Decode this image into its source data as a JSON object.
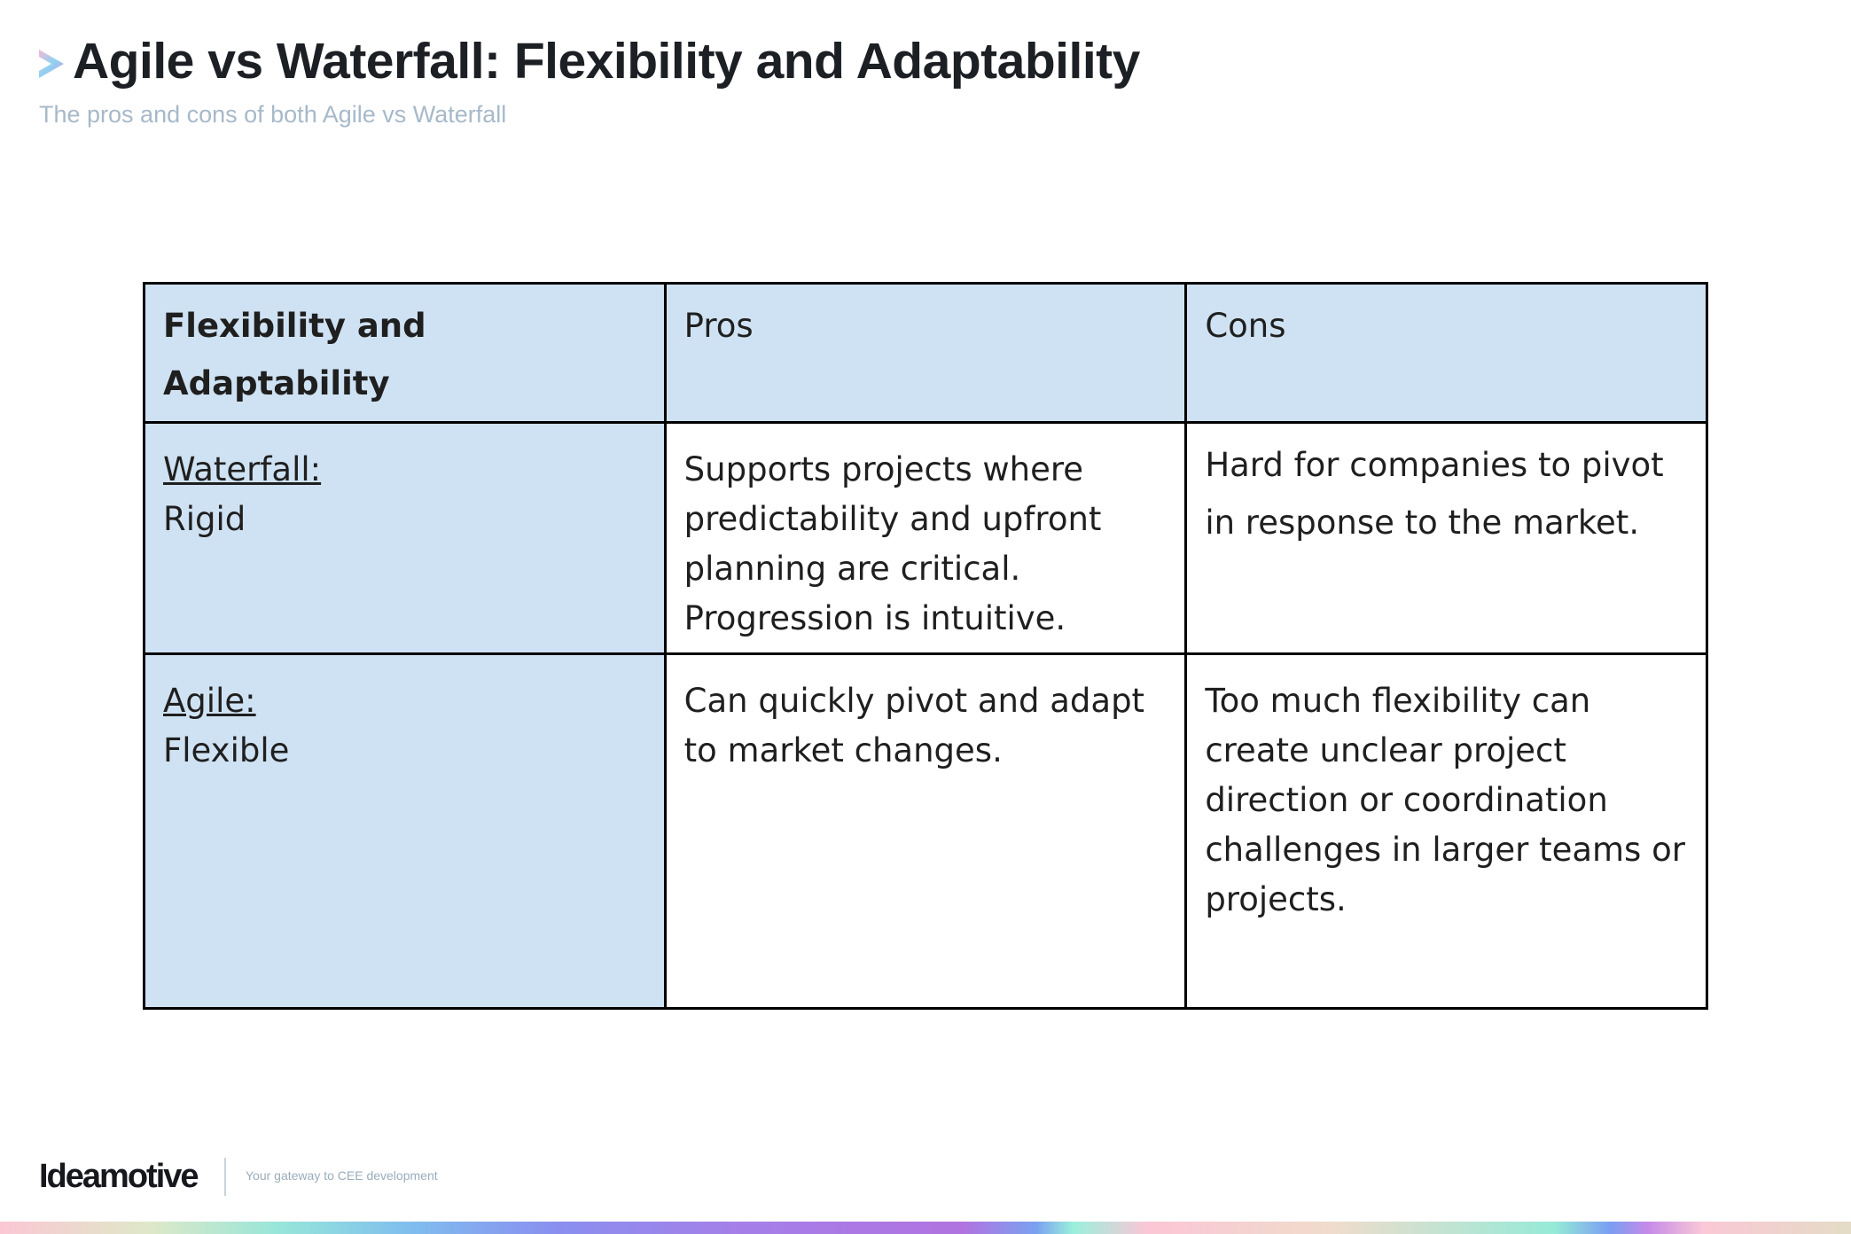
{
  "header": {
    "title": "Agile vs Waterfall: Flexibility and Adaptability",
    "subtitle": "The pros and cons of both Agile vs Waterfall",
    "logo_icon": "chevron-right-gradient-icon"
  },
  "table": {
    "headers": [
      "Flexibility and Adaptability",
      "Pros",
      "Cons"
    ],
    "rows": [
      {
        "method": "Waterfall:",
        "trait": "Rigid",
        "pros": "Supports projects where predictability and upfront planning are critical. Progression is intuitive.",
        "cons": "Hard for companies to pivot in response to the market."
      },
      {
        "method": "Agile:",
        "trait": "Flexible",
        "pros": "Can quickly pivot and adapt to market changes.",
        "cons": "Too much flexibility can create unclear project direction or coordination challenges in larger teams or projects."
      }
    ],
    "colors": {
      "header_bg": "#cfe2f3",
      "border": "#000000"
    }
  },
  "footer": {
    "brand": "Ideamotive",
    "tagline": "Your gateway to CEE development"
  }
}
